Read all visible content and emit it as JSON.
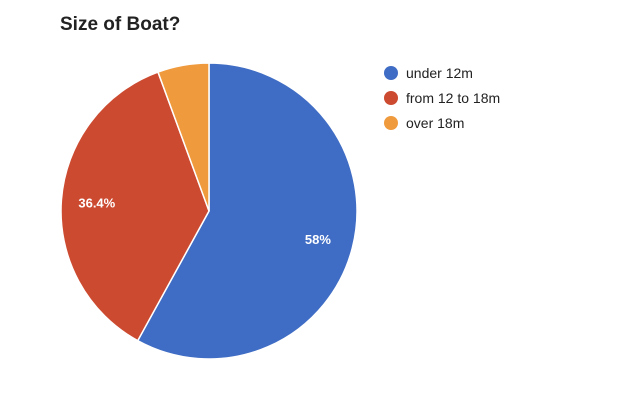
{
  "chart_data": {
    "type": "pie",
    "title": "Size of Boat?",
    "slices": [
      {
        "label": "under 12m",
        "value": 58,
        "color": "#3f6cc4",
        "data_label": "58%"
      },
      {
        "label": "from 12 to 18m",
        "value": 36.4,
        "color": "#cc4a30",
        "data_label": "36.4%"
      },
      {
        "label": "over 18m",
        "value": 5.6,
        "color": "#ef9a3d",
        "data_label": ""
      }
    ],
    "legend_position": "right"
  }
}
